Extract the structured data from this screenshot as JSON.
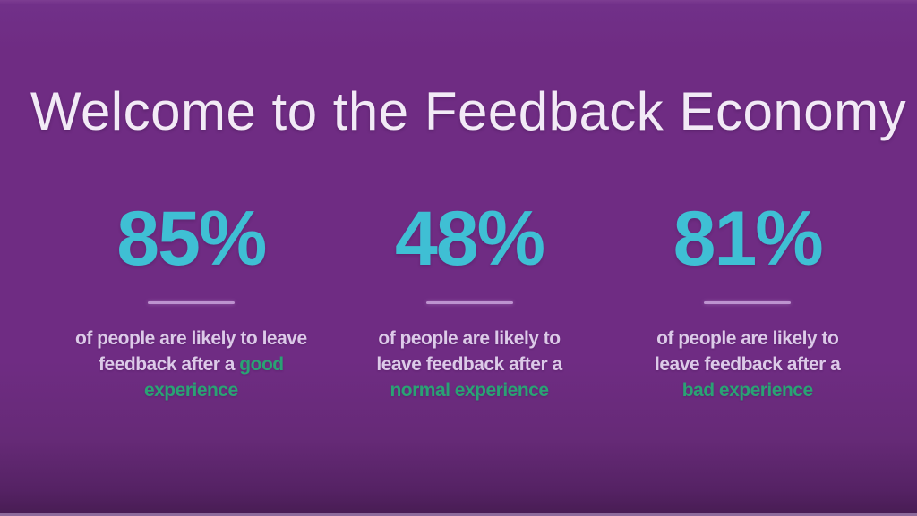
{
  "slide": {
    "title": "Welcome to the Feedback Economy"
  },
  "theme": {
    "background_purple": "#6f2c83",
    "background_bottom": "#471c52",
    "title_white": "#f2eaf6",
    "accent_cyan": "#3fbfd4",
    "accent_green": "#2aa274",
    "divider_lavender": "#bd93cf",
    "text_light": "#dccae8"
  },
  "stats": [
    {
      "id": "good-experience",
      "value": "85%",
      "lines": [
        {
          "plain": "of people are likely to leave",
          "green": ""
        },
        {
          "plain": "feedback after a ",
          "green": "good"
        },
        {
          "plain": "",
          "green": "experience"
        }
      ]
    },
    {
      "id": "normal-experience",
      "value": "48%",
      "lines": [
        {
          "plain": "of people are likely to",
          "green": ""
        },
        {
          "plain": "leave feedback after a",
          "green": ""
        },
        {
          "plain": "",
          "green": "normal experience"
        }
      ]
    },
    {
      "id": "bad-experience",
      "value": "81%",
      "lines": [
        {
          "plain": "of people are likely to",
          "green": ""
        },
        {
          "plain": "leave feedback after a",
          "green": ""
        },
        {
          "plain": "",
          "green": "bad experience"
        }
      ]
    }
  ]
}
